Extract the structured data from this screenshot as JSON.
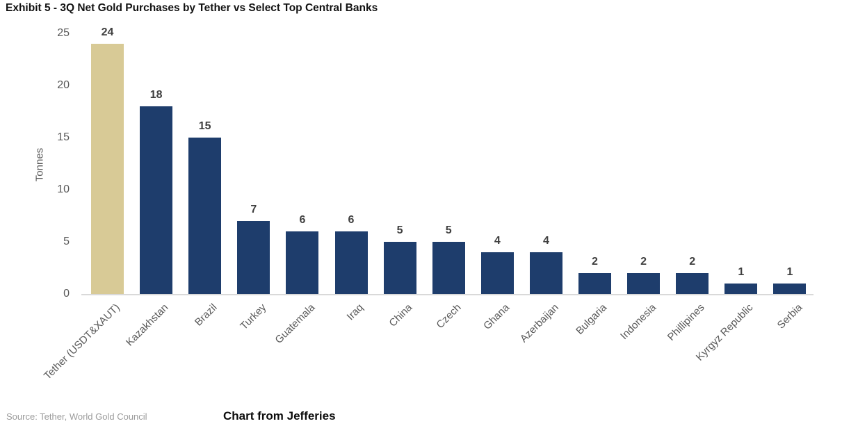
{
  "title": "Exhibit 5 - 3Q Net Gold Purchases by Tether vs Select Top Central Banks",
  "footer": {
    "source": "Source: Tether, World Gold Council",
    "credit": "Chart from Jefferies"
  },
  "chart_data": {
    "type": "bar",
    "title": "Exhibit 5 - 3Q Net Gold Purchases by Tether vs Select Top Central Banks",
    "xlabel": "",
    "ylabel": "Tonnes",
    "categories": [
      "Tether (USDT&XAUT)",
      "Kazakhstan",
      "Brazil",
      "Turkey",
      "Guatemala",
      "Iraq",
      "China",
      "Czech",
      "Ghana",
      "Azerbaijan",
      "Bulgaria",
      "Indonesia",
      "Phillipines",
      "Kyrgyz Republic",
      "Serbia"
    ],
    "values": [
      24,
      18,
      15,
      7,
      6,
      6,
      5,
      5,
      4,
      4,
      2,
      2,
      2,
      1,
      1
    ],
    "yticks": [
      0,
      5,
      10,
      15,
      20,
      25
    ],
    "ylim": [
      0,
      25
    ],
    "grid": false,
    "legend": "none",
    "bar_label_position": "above",
    "xtick_rotation_deg": 45,
    "colors": {
      "highlight_bar": "#d8ca96",
      "default_bar": "#1e3d6c",
      "highlighted_category": "Tether (USDT&XAUT)",
      "axis_line": "#d9d9d9",
      "tick_text": "#595959",
      "value_text": "#3f3f3f"
    }
  }
}
